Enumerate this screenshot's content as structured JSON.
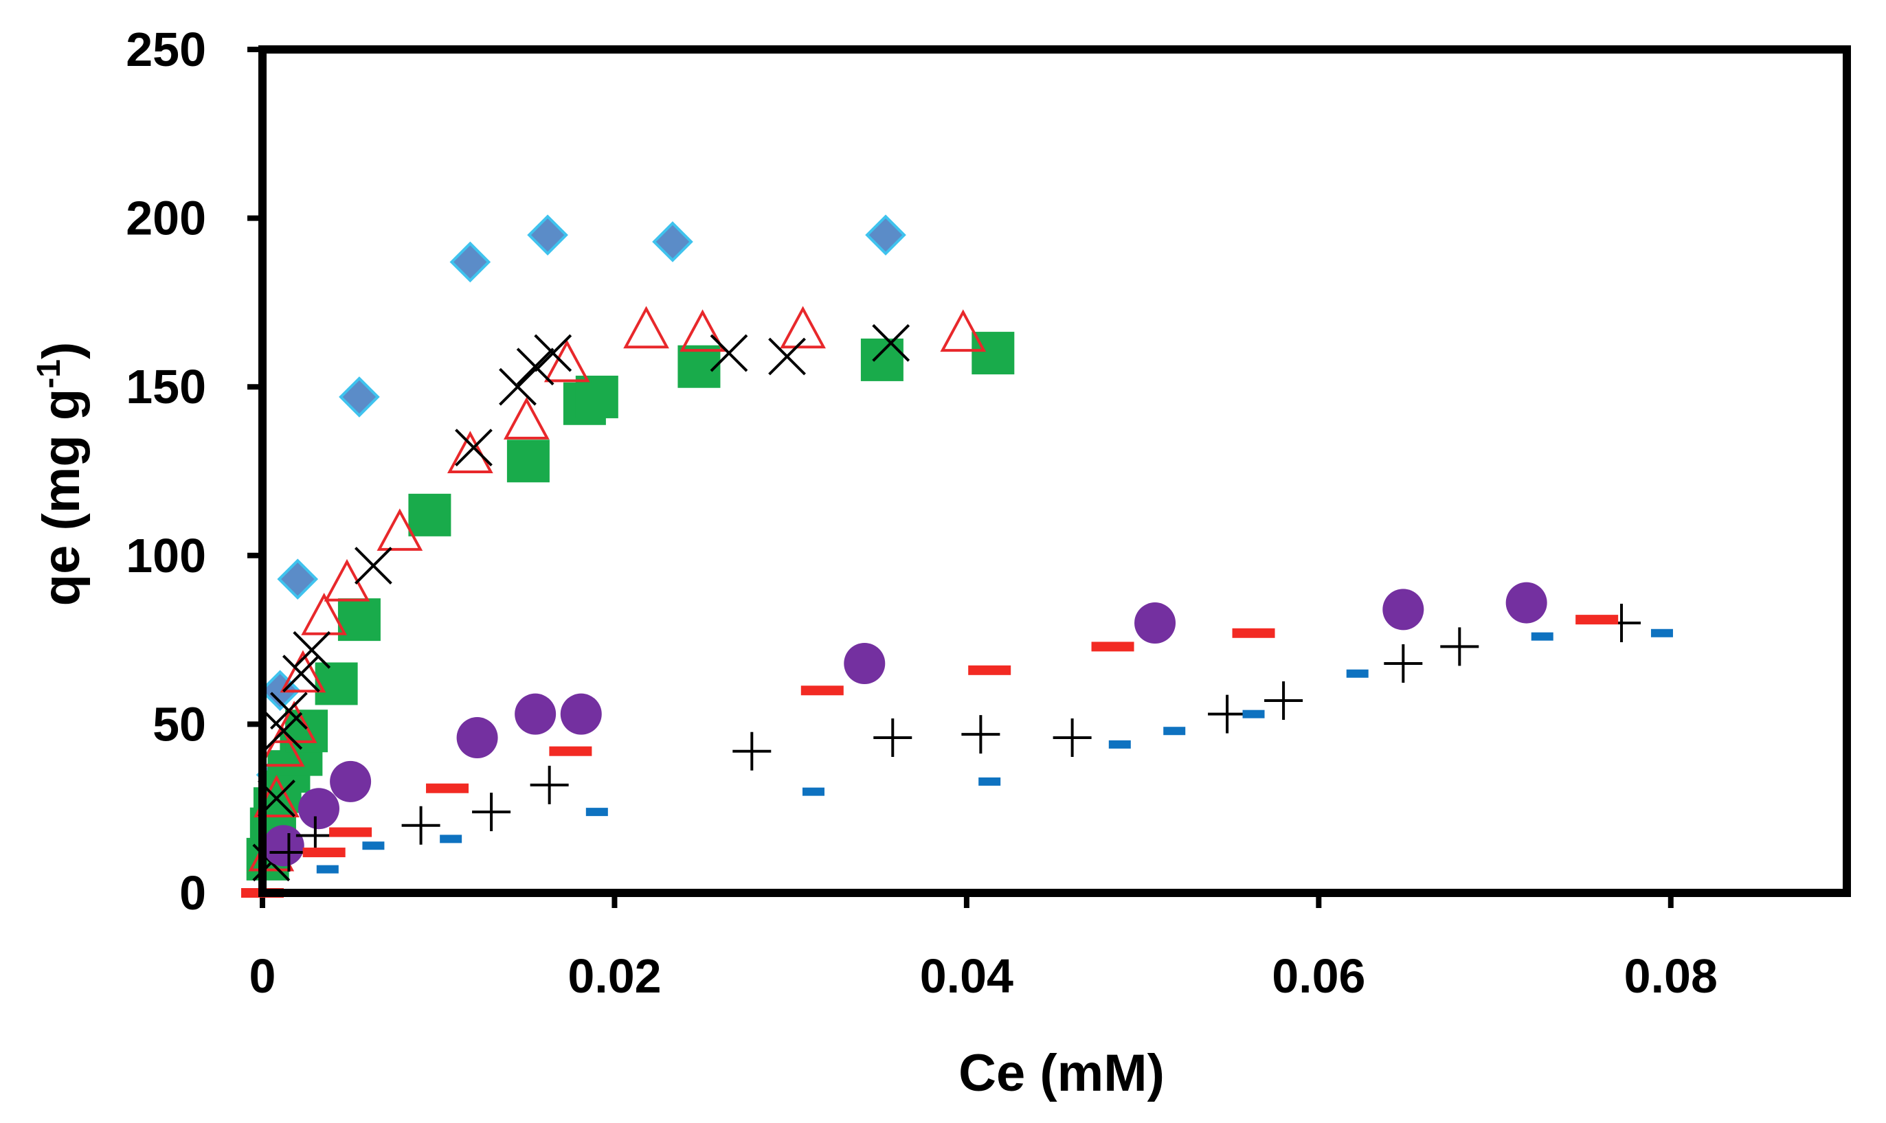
{
  "chart_data": {
    "type": "scatter",
    "title": "",
    "xlabel": "Ce (mM)",
    "ylabel_main": "qe (mg g",
    "ylabel_sup": "-1",
    "ylabel_close": ")",
    "xlim": [
      0,
      0.09
    ],
    "ylim": [
      0,
      250
    ],
    "x_ticks": [
      0,
      0.02,
      0.04,
      0.06,
      0.08
    ],
    "x_tick_labels": [
      "0",
      "0.02",
      "0.04",
      "0.06",
      "0.08"
    ],
    "y_ticks": [
      0,
      50,
      100,
      150,
      200,
      250
    ],
    "y_tick_labels": [
      "0",
      "50",
      "100",
      "150",
      "200",
      "250"
    ],
    "grid": false,
    "legend": "none",
    "series": [
      {
        "name": "cyan-diamonds",
        "marker": "diamond",
        "color": "#5B8CC8",
        "stroke": "#3FC3EE",
        "points": [
          [
            0.0005,
            22
          ],
          [
            0.0008,
            35
          ],
          [
            0.001,
            60
          ],
          [
            0.002,
            93
          ],
          [
            0.0055,
            147
          ],
          [
            0.0118,
            187
          ],
          [
            0.0162,
            195
          ],
          [
            0.0233,
            193
          ],
          [
            0.0354,
            195
          ]
        ]
      },
      {
        "name": "green-squares",
        "marker": "square",
        "color": "#19AB4B",
        "points": [
          [
            0.0003,
            10
          ],
          [
            0.0005,
            19
          ],
          [
            0.0007,
            25
          ],
          [
            0.001,
            30
          ],
          [
            0.0015,
            36
          ],
          [
            0.0022,
            41
          ],
          [
            0.0025,
            48
          ],
          [
            0.0042,
            62
          ],
          [
            0.0055,
            81
          ],
          [
            0.0095,
            112
          ],
          [
            0.0151,
            128
          ],
          [
            0.0183,
            145
          ],
          [
            0.019,
            147
          ],
          [
            0.0248,
            156
          ],
          [
            0.0352,
            158
          ],
          [
            0.0415,
            160
          ]
        ]
      },
      {
        "name": "red-open-triangles",
        "marker": "triangle-open",
        "color": "#E8282B",
        "points": [
          [
            0.0005,
            12
          ],
          [
            0.0008,
            28
          ],
          [
            0.0011,
            43
          ],
          [
            0.0018,
            50
          ],
          [
            0.0023,
            65
          ],
          [
            0.0035,
            82
          ],
          [
            0.0048,
            92
          ],
          [
            0.0078,
            107
          ],
          [
            0.0118,
            130
          ],
          [
            0.015,
            140
          ],
          [
            0.0173,
            157
          ],
          [
            0.0218,
            167
          ],
          [
            0.025,
            166
          ],
          [
            0.0307,
            167
          ],
          [
            0.0398,
            166
          ]
        ]
      },
      {
        "name": "black-x",
        "marker": "x",
        "color": "#000000",
        "points": [
          [
            0.0005,
            9
          ],
          [
            0.0008,
            28
          ],
          [
            0.0012,
            48
          ],
          [
            0.0015,
            54
          ],
          [
            0.0022,
            65
          ],
          [
            0.0028,
            72
          ],
          [
            0.0063,
            97
          ],
          [
            0.012,
            132
          ],
          [
            0.0145,
            150
          ],
          [
            0.0155,
            156
          ],
          [
            0.0165,
            160
          ],
          [
            0.0265,
            160
          ],
          [
            0.0298,
            159
          ],
          [
            0.0357,
            163
          ]
        ]
      },
      {
        "name": "purple-circles",
        "marker": "circle",
        "color": "#7430A0",
        "points": [
          [
            0.0012,
            14
          ],
          [
            0.0032,
            25
          ],
          [
            0.005,
            33
          ],
          [
            0.0122,
            46
          ],
          [
            0.0155,
            53
          ],
          [
            0.0181,
            53
          ],
          [
            0.0342,
            68
          ],
          [
            0.0507,
            80
          ],
          [
            0.0648,
            84
          ],
          [
            0.0718,
            86
          ]
        ]
      },
      {
        "name": "black-plus",
        "marker": "plus",
        "color": "#000000",
        "points": [
          [
            0.0015,
            12
          ],
          [
            0.003,
            17
          ],
          [
            0.009,
            20
          ],
          [
            0.013,
            24
          ],
          [
            0.0163,
            32
          ],
          [
            0.0278,
            42
          ],
          [
            0.0358,
            46
          ],
          [
            0.0408,
            47
          ],
          [
            0.046,
            46
          ],
          [
            0.0548,
            53
          ],
          [
            0.058,
            57
          ],
          [
            0.0648,
            68
          ],
          [
            0.068,
            73
          ],
          [
            0.0772,
            80
          ]
        ]
      },
      {
        "name": "red-dashes",
        "marker": "dash-long",
        "color": "#F22A23",
        "points": [
          [
            0,
            0
          ],
          [
            0.0035,
            12
          ],
          [
            0.005,
            18
          ],
          [
            0.0105,
            31
          ],
          [
            0.0175,
            42
          ],
          [
            0.0318,
            60
          ],
          [
            0.0413,
            66
          ],
          [
            0.0483,
            73
          ],
          [
            0.0563,
            77
          ],
          [
            0.0758,
            81
          ]
        ]
      },
      {
        "name": "blue-dashes",
        "marker": "dash-short",
        "color": "#0E72C0",
        "points": [
          [
            0.0037,
            7
          ],
          [
            0.0063,
            14
          ],
          [
            0.0107,
            16
          ],
          [
            0.019,
            24
          ],
          [
            0.0313,
            30
          ],
          [
            0.0413,
            33
          ],
          [
            0.0487,
            44
          ],
          [
            0.0518,
            48
          ],
          [
            0.0563,
            53
          ],
          [
            0.0622,
            65
          ],
          [
            0.0727,
            76
          ],
          [
            0.0795,
            77
          ]
        ]
      }
    ]
  }
}
